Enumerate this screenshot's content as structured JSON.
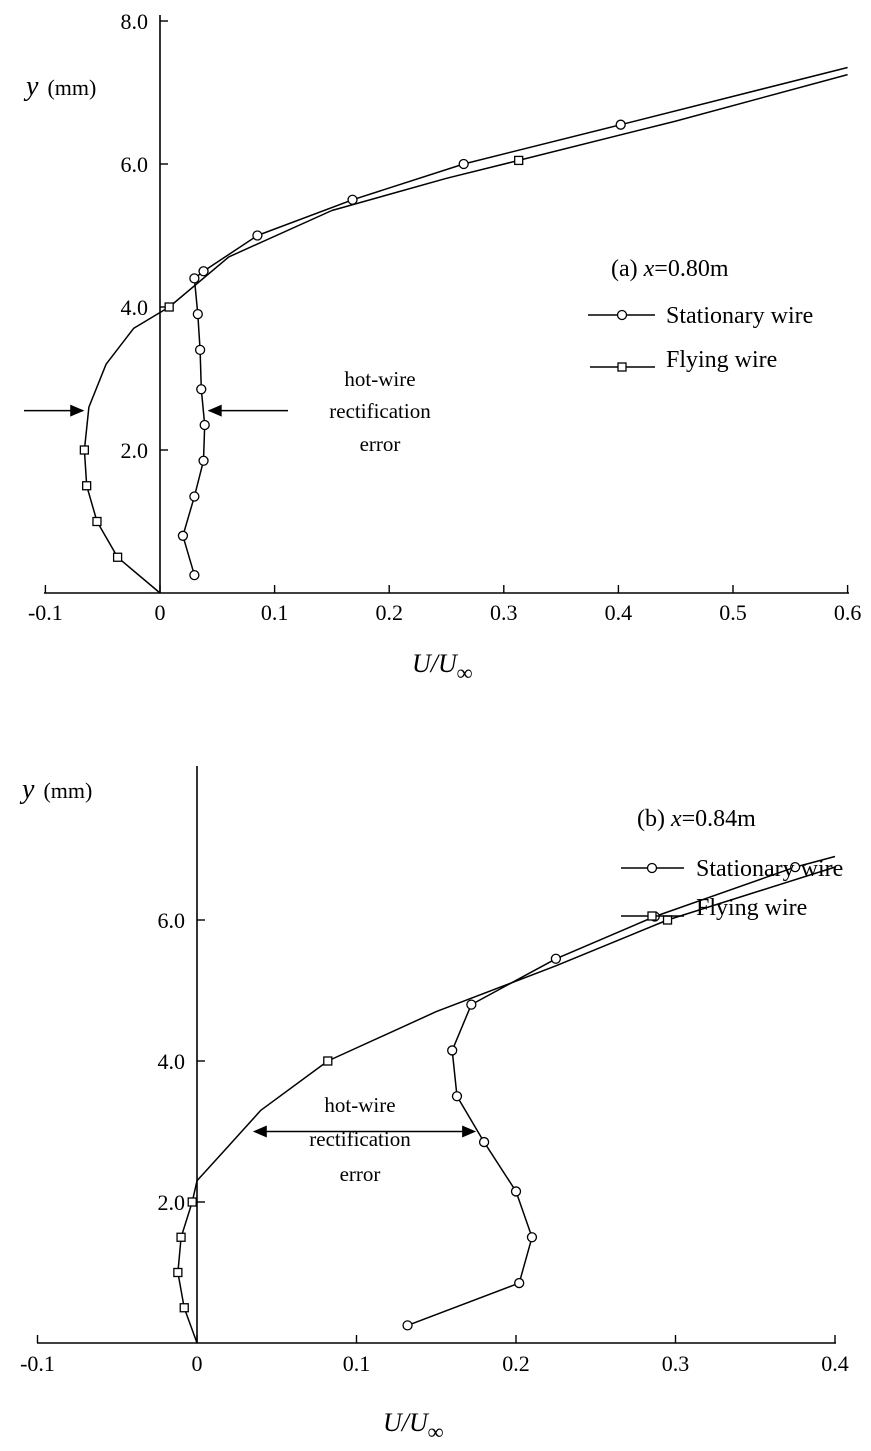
{
  "chart_data": [
    {
      "type": "line",
      "title": "(a) x=0.80m",
      "title_prefix": "(a)",
      "title_var": "x",
      "title_rest": "=0.80m",
      "xlabel_main": "U/U",
      "xlabel_sub": "∞",
      "ylabel_var": "y",
      "ylabel_unit": "(mm)",
      "xlim": [
        -0.1,
        0.6
      ],
      "ylim": [
        0.0,
        8.0
      ],
      "x_ticks": [
        -0.1,
        0.0,
        0.1,
        0.2,
        0.3,
        0.4,
        0.5,
        0.6
      ],
      "x_tick_labels": [
        "-0.1",
        "0",
        "0.1",
        "0.2",
        "0.3",
        "0.4",
        "0.5",
        "0.6"
      ],
      "y_ticks": [
        2.0,
        4.0,
        6.0,
        8.0
      ],
      "y_tick_labels": [
        "2.0",
        "4.0",
        "6.0",
        "8.0"
      ],
      "legend_position": "right",
      "annotation_lines": [
        "hot-wire",
        "rectification",
        "error"
      ],
      "series": [
        {
          "name": "Stationary wire",
          "marker": "circle",
          "x": [
            0.03,
            0.02,
            0.03,
            0.038,
            0.039,
            0.036,
            0.035,
            0.033,
            0.03,
            0.038,
            0.085,
            0.168,
            0.265,
            0.402
          ],
          "y": [
            0.25,
            0.8,
            1.35,
            1.85,
            2.35,
            2.85,
            3.4,
            3.9,
            4.4,
            4.5,
            5.0,
            5.5,
            6.0,
            6.55
          ],
          "line_x": [
            0.03,
            0.02,
            0.03,
            0.038,
            0.039,
            0.036,
            0.035,
            0.033,
            0.03,
            0.038,
            0.085,
            0.168,
            0.265,
            0.402,
            0.6
          ],
          "line_y": [
            0.25,
            0.8,
            1.35,
            1.85,
            2.35,
            2.85,
            3.4,
            3.9,
            4.4,
            4.5,
            5.0,
            5.5,
            6.0,
            6.55,
            7.35
          ]
        },
        {
          "name": "Flying wire",
          "marker": "square",
          "x": [
            -0.037,
            -0.055,
            -0.064,
            -0.066,
            0.008,
            0.313
          ],
          "y": [
            0.5,
            1.0,
            1.5,
            2.0,
            4.0,
            6.05
          ],
          "line_x": [
            0.0,
            -0.037,
            -0.055,
            -0.064,
            -0.066,
            -0.062,
            -0.047,
            -0.023,
            0.008,
            0.06,
            0.15,
            0.25,
            0.313,
            0.45,
            0.6
          ],
          "line_y": [
            0.0,
            0.5,
            1.0,
            1.5,
            2.0,
            2.6,
            3.2,
            3.7,
            4.0,
            4.7,
            5.35,
            5.8,
            6.05,
            6.6,
            7.25
          ]
        }
      ],
      "arrow_levels": {
        "y": 2.55,
        "x_left": -0.0635,
        "x_right": 0.039
      }
    },
    {
      "type": "line",
      "title": "(b) x=0.84m",
      "title_prefix": "(b)",
      "title_var": "x",
      "title_rest": "=0.84m",
      "xlabel_main": "U/U",
      "xlabel_sub": "∞",
      "ylabel_var": "y",
      "ylabel_unit": "(mm)",
      "xlim": [
        -0.1,
        0.4
      ],
      "ylim": [
        0.0,
        7.0
      ],
      "x_ticks": [
        -0.1,
        0.0,
        0.1,
        0.2,
        0.3,
        0.4
      ],
      "x_tick_labels": [
        "-0.1",
        "0",
        "0.1",
        "0.2",
        "0.3",
        "0.4"
      ],
      "y_ticks": [
        2.0,
        4.0,
        6.0
      ],
      "y_tick_labels": [
        "2.0",
        "4.0",
        "6.0"
      ],
      "legend_position": "right",
      "annotation_lines": [
        "hot-wire",
        "rectification",
        "error"
      ],
      "series": [
        {
          "name": "Stationary wire",
          "marker": "circle",
          "x": [
            0.132,
            0.202,
            0.21,
            0.2,
            0.18,
            0.163,
            0.16,
            0.172,
            0.225,
            0.287,
            0.375
          ],
          "y": [
            0.25,
            0.85,
            1.5,
            2.15,
            2.85,
            3.5,
            4.15,
            4.8,
            5.45,
            6.05,
            6.75
          ],
          "line_x": [
            0.132,
            0.202,
            0.21,
            0.2,
            0.18,
            0.163,
            0.16,
            0.172,
            0.225,
            0.287,
            0.375,
            0.4
          ],
          "line_y": [
            0.25,
            0.85,
            1.5,
            2.15,
            2.85,
            3.5,
            4.15,
            4.8,
            5.45,
            6.05,
            6.75,
            6.9
          ]
        },
        {
          "name": "Flying wire",
          "marker": "square",
          "x": [
            -0.008,
            -0.012,
            -0.01,
            -0.003,
            0.082,
            0.295
          ],
          "y": [
            0.5,
            1.0,
            1.5,
            2.0,
            4.0,
            6.0
          ],
          "line_x": [
            0.0,
            -0.008,
            -0.012,
            -0.01,
            -0.003,
            0.0,
            0.02,
            0.04,
            0.082,
            0.15,
            0.225,
            0.295,
            0.4
          ],
          "line_y": [
            0.0,
            0.5,
            1.0,
            1.5,
            2.0,
            2.3,
            2.8,
            3.3,
            4.0,
            4.7,
            5.35,
            6.0,
            6.75
          ]
        }
      ],
      "arrow_levels": {
        "y": 3.0,
        "x_left": 0.035,
        "x_right": 0.175
      }
    }
  ]
}
